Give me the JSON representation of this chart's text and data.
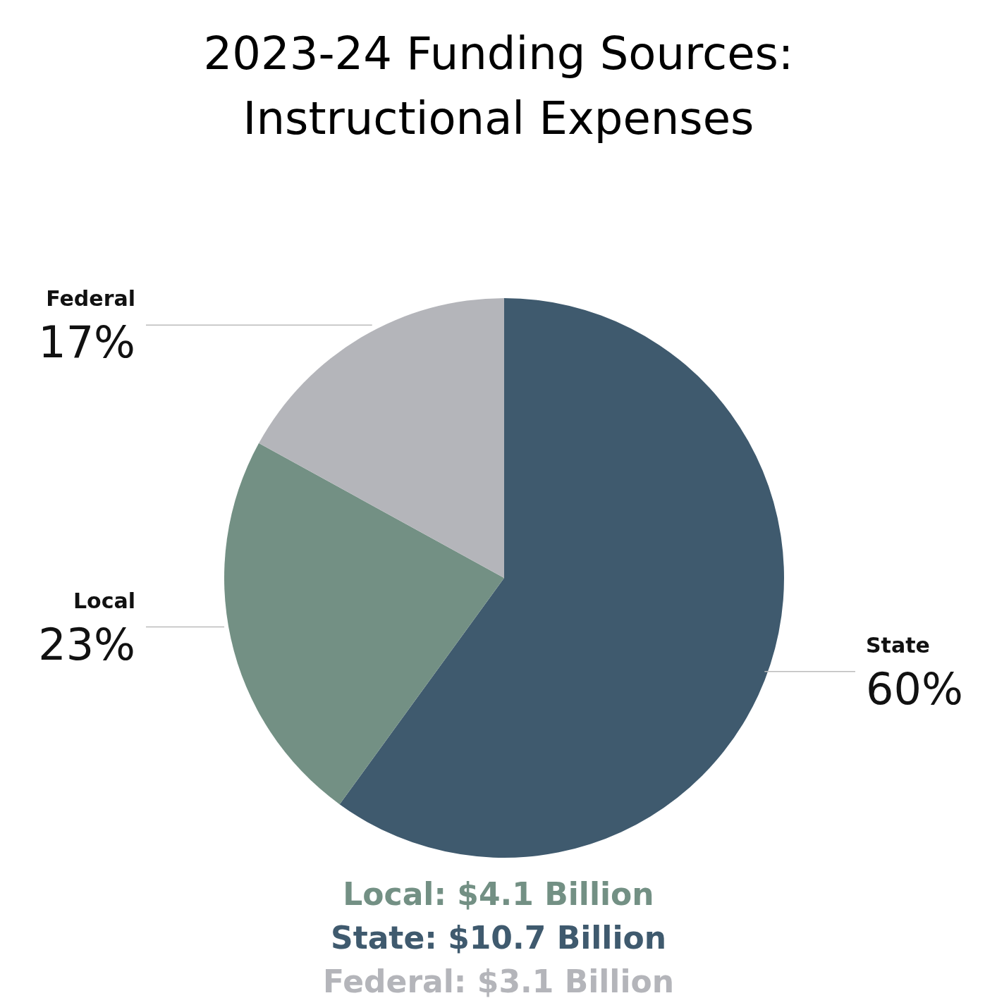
{
  "chart_data": {
    "type": "pie",
    "title": "2023-24 Funding Sources: Instructional Expenses",
    "categories": [
      "State",
      "Local",
      "Federal"
    ],
    "values": [
      60,
      23,
      17
    ],
    "colors": [
      "#3f5a6e",
      "#739084",
      "#b4b5ba"
    ],
    "value_labels": [
      "60%",
      "23%",
      "17%"
    ],
    "annotations": [
      "Local: $4.1 Billion",
      "State: $10.7 Billion",
      "Federal: $3.1 Billion"
    ]
  }
}
